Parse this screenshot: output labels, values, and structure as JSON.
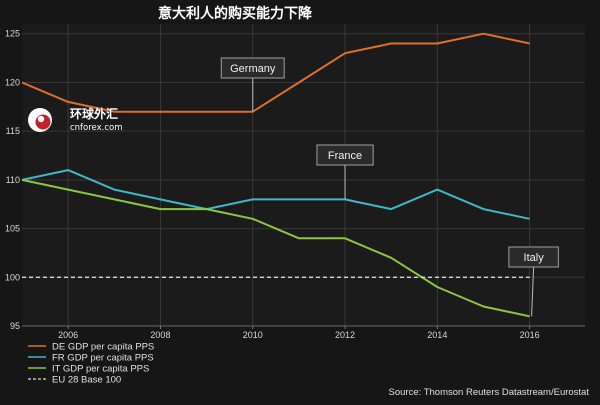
{
  "chart_data": {
    "type": "line",
    "title": "意大利人的购买能力下降",
    "xlim": [
      2005,
      2017.2
    ],
    "ylim": [
      95,
      126
    ],
    "x_ticks": [
      2006,
      2008,
      2010,
      2012,
      2014,
      2016
    ],
    "y_ticks": [
      95,
      100,
      105,
      110,
      115,
      120,
      125
    ],
    "grid": true,
    "legend_position": "bottom-left",
    "x": [
      2005,
      2006,
      2007,
      2008,
      2009,
      2010,
      2011,
      2012,
      2013,
      2014,
      2015,
      2016
    ],
    "series": [
      {
        "name": "DE GDP per capita PPS",
        "color": "#e06f2a",
        "style": "solid",
        "values": [
          120,
          118,
          117,
          117,
          117,
          117,
          120,
          123,
          124,
          124,
          125,
          124
        ]
      },
      {
        "name": "FR GDP per capita PPS",
        "color": "#3fb7c5",
        "style": "solid",
        "values": [
          110,
          111,
          109,
          108,
          107,
          108,
          108,
          108,
          107,
          109,
          107,
          106
        ]
      },
      {
        "name": "IT GDP per capita PPS",
        "color": "#8cc63f",
        "style": "solid",
        "values": [
          110,
          109,
          108,
          107,
          107,
          106,
          104,
          104,
          102,
          99,
          97,
          96
        ]
      },
      {
        "name": "EU 28 Base 100",
        "color": "#d9d9d9",
        "style": "dashed",
        "values": [
          100,
          100,
          100,
          100,
          100,
          100,
          100,
          100,
          100,
          100,
          100,
          100
        ]
      }
    ],
    "annotations": [
      {
        "text": "Germany",
        "series": 0,
        "x": 2010
      },
      {
        "text": "France",
        "series": 1,
        "x": 2012
      },
      {
        "text": "Italy",
        "series": 2,
        "x": 2016
      }
    ],
    "source": "Source: Thomson Reuters Datastream/Eurostat"
  },
  "watermark": {
    "name_cn": "环球外汇",
    "domain": "cnforex.com"
  },
  "colors": {
    "background": "#161616",
    "plot_background": "#1b1b1b",
    "grid": "#3a3a3a"
  }
}
